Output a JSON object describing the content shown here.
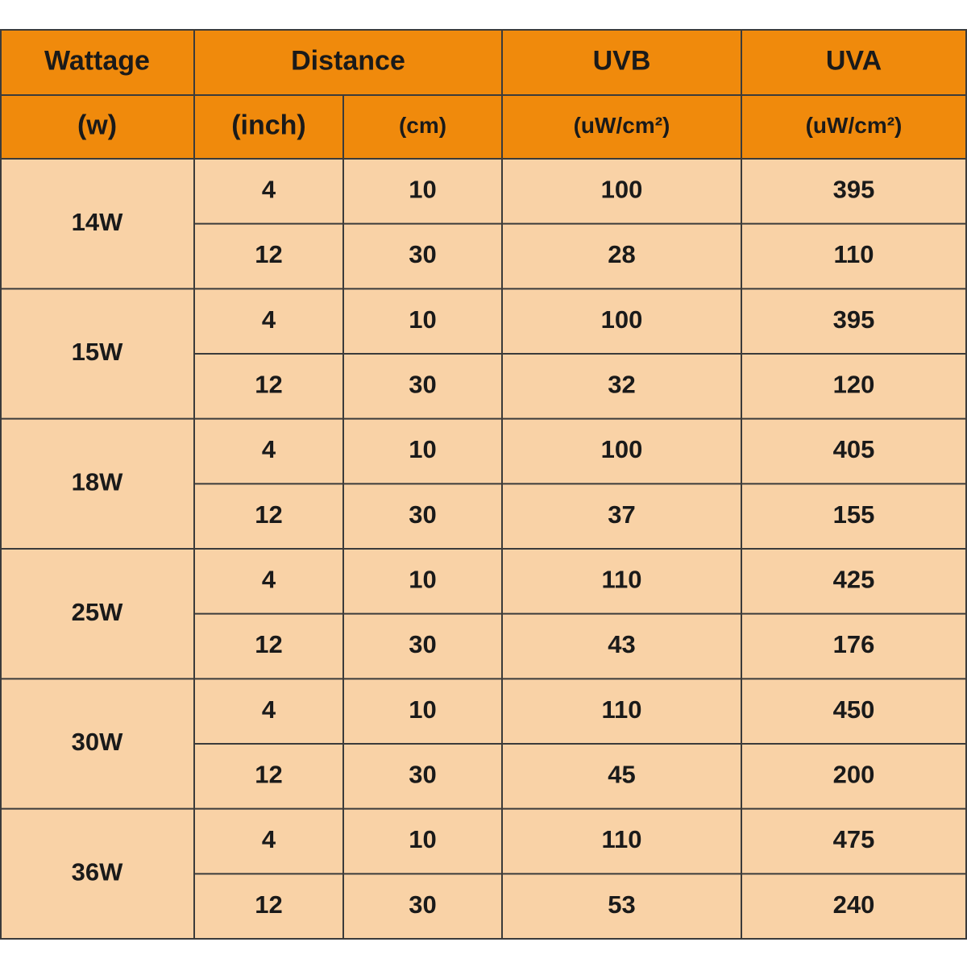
{
  "header": {
    "row1": [
      "Wattage",
      "Distance",
      "UVB",
      "UVA"
    ],
    "row2": [
      "(w)",
      "(inch)",
      "(cm)",
      "(uW/cm²)",
      "(uW/cm²)"
    ]
  },
  "table": {
    "groups": [
      {
        "wattage": "14W",
        "rows": [
          [
            4,
            10,
            100,
            395
          ],
          [
            12,
            30,
            28,
            110
          ]
        ]
      },
      {
        "wattage": "15W",
        "rows": [
          [
            4,
            10,
            100,
            395
          ],
          [
            12,
            30,
            32,
            120
          ]
        ]
      },
      {
        "wattage": "18W",
        "rows": [
          [
            4,
            10,
            100,
            405
          ],
          [
            12,
            30,
            37,
            155
          ]
        ]
      },
      {
        "wattage": "25W",
        "rows": [
          [
            4,
            10,
            110,
            425
          ],
          [
            12,
            30,
            43,
            176
          ]
        ]
      },
      {
        "wattage": "30W",
        "rows": [
          [
            4,
            10,
            110,
            450
          ],
          [
            12,
            30,
            45,
            200
          ]
        ]
      },
      {
        "wattage": "36W",
        "rows": [
          [
            4,
            10,
            110,
            475
          ],
          [
            12,
            30,
            53,
            240
          ]
        ]
      }
    ]
  }
}
